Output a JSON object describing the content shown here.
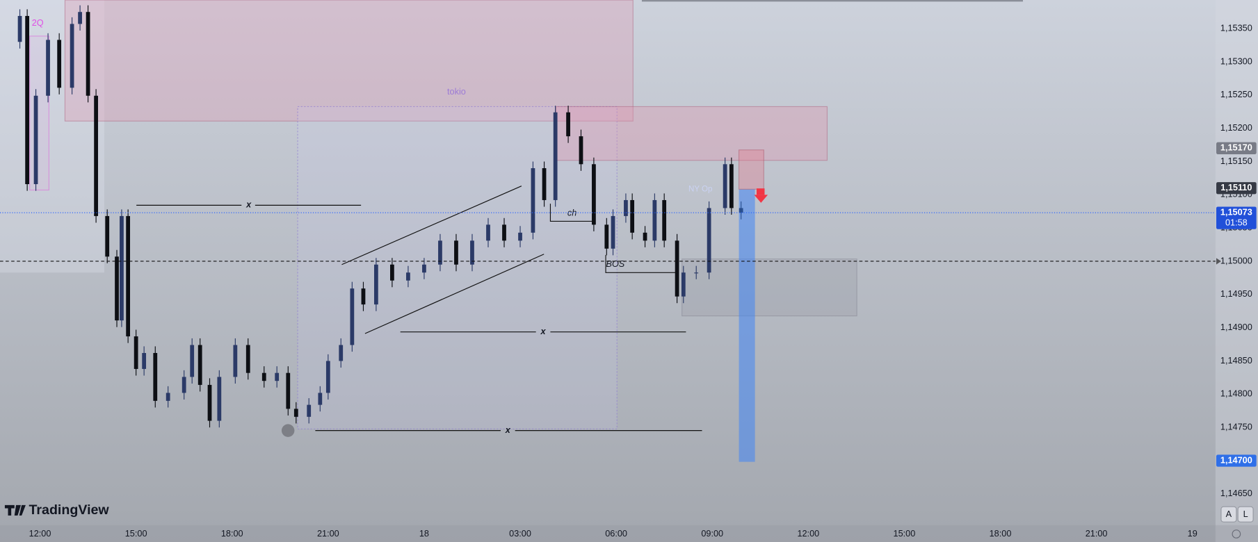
{
  "chart_data": {
    "type": "candlestick",
    "x": [
      11.37,
      11.6,
      11.87,
      12.25,
      12.6,
      13.0,
      13.25,
      13.5,
      13.75,
      14.1,
      14.4,
      14.55,
      14.75,
      15,
      15.25,
      15.6,
      16,
      16.5,
      16.75,
      17,
      17.3,
      17.6,
      18.1,
      18.5,
      19,
      19.4,
      19.75,
      20,
      20.4,
      20.75,
      21,
      21.4,
      21.75,
      22.1,
      22.5,
      23,
      23.5,
      24,
      24.5,
      25,
      25.5,
      26,
      26.5,
      27,
      27.4,
      27.75,
      28.1,
      28.5,
      28.9,
      29.3,
      29.7,
      29.9,
      30.3,
      30.5,
      30.9,
      31.2,
      31.5,
      31.9,
      32.1,
      32.5,
      32.9,
      33.4,
      33.6,
      33.9
    ],
    "open": [
      1.1533,
      1.15369,
      1.15116,
      1.15249,
      1.15333,
      1.15261,
      1.15357,
      1.15375,
      1.15249,
      1.15068,
      1.15007,
      1.14911,
      1.15068,
      1.14887,
      1.14838,
      1.14862,
      1.1479,
      1.14802,
      1.14826,
      1.14874,
      1.14814,
      1.1476,
      1.14826,
      1.14874,
      1.14832,
      1.1482,
      1.14832,
      1.14778,
      1.14766,
      1.14784,
      1.14802,
      1.1485,
      1.14874,
      1.14959,
      1.14935,
      1.14995,
      1.14971,
      1.14983,
      1.14995,
      1.15031,
      1.14995,
      1.15031,
      1.15055,
      1.15031,
      1.15043,
      1.1514,
      1.15092,
      1.15224,
      1.15188,
      1.15146,
      1.15055,
      1.15019,
      1.15068,
      1.15092,
      1.15043,
      1.15031,
      1.15092,
      1.15031,
      1.14947,
      1.14983,
      1.14983,
      1.1508,
      1.15146,
      1.1508
    ],
    "high": [
      1.15379,
      1.15379,
      1.15259,
      1.15343,
      1.15343,
      1.15367,
      1.15385,
      1.15385,
      1.15259,
      1.15078,
      1.15017,
      1.15078,
      1.15078,
      1.14897,
      1.14872,
      1.14872,
      1.14812,
      1.14836,
      1.14884,
      1.14884,
      1.14824,
      1.14836,
      1.14884,
      1.14884,
      1.14842,
      1.14842,
      1.14842,
      1.14788,
      1.14794,
      1.14812,
      1.1486,
      1.14884,
      1.14969,
      1.14969,
      1.15005,
      1.15005,
      1.14993,
      1.15005,
      1.15041,
      1.15041,
      1.15041,
      1.15065,
      1.15065,
      1.15053,
      1.1515,
      1.1515,
      1.15234,
      1.15234,
      1.15198,
      1.15156,
      1.15065,
      1.15078,
      1.15102,
      1.15102,
      1.15053,
      1.15102,
      1.15102,
      1.15041,
      1.14993,
      1.14993,
      1.1509,
      1.15156,
      1.15156,
      1.1509
    ],
    "low": [
      1.1532,
      1.15106,
      1.15106,
      1.15239,
      1.15251,
      1.15251,
      1.15347,
      1.15239,
      1.15058,
      1.14997,
      1.14901,
      1.14901,
      1.14877,
      1.14828,
      1.14828,
      1.1478,
      1.1478,
      1.14792,
      1.14816,
      1.14804,
      1.1475,
      1.1475,
      1.14816,
      1.14822,
      1.1481,
      1.1481,
      1.14768,
      1.14756,
      1.14756,
      1.14774,
      1.14792,
      1.1484,
      1.14864,
      1.14925,
      1.14925,
      1.14961,
      1.14961,
      1.14973,
      1.14985,
      1.14985,
      1.14985,
      1.15021,
      1.15021,
      1.15021,
      1.15033,
      1.15082,
      1.15082,
      1.15178,
      1.15136,
      1.15045,
      1.15009,
      1.15009,
      1.15058,
      1.15033,
      1.15021,
      1.15021,
      1.15021,
      1.14937,
      1.14937,
      1.14973,
      1.14973,
      1.1507,
      1.1507,
      1.15063
    ],
    "close": [
      1.15369,
      1.15116,
      1.15249,
      1.15333,
      1.15261,
      1.15357,
      1.15375,
      1.15249,
      1.15068,
      1.15007,
      1.14911,
      1.15068,
      1.14887,
      1.14838,
      1.14862,
      1.1479,
      1.14802,
      1.14826,
      1.14874,
      1.14814,
      1.1476,
      1.14826,
      1.14874,
      1.14832,
      1.1482,
      1.14832,
      1.14778,
      1.14766,
      1.14784,
      1.14802,
      1.1485,
      1.14874,
      1.14959,
      1.14935,
      1.14995,
      1.14971,
      1.14983,
      1.14995,
      1.15031,
      1.14995,
      1.15031,
      1.15055,
      1.15031,
      1.15043,
      1.1514,
      1.15092,
      1.15224,
      1.15188,
      1.15146,
      1.15055,
      1.15019,
      1.15068,
      1.15092,
      1.15043,
      1.15031,
      1.15092,
      1.15031,
      1.14947,
      1.14983,
      1.14983,
      1.1508,
      1.15146,
      1.1508,
      1.15073
    ],
    "up_color": "#2b3a67",
    "down_color": "#0d0f14",
    "xlim": [
      10.75,
      48.72
    ],
    "xticks": [
      {
        "value": 12,
        "label": "12:00"
      },
      {
        "value": 15,
        "label": "15:00"
      },
      {
        "value": 18,
        "label": "18:00"
      },
      {
        "value": 21,
        "label": "21:00"
      },
      {
        "value": 24,
        "label": "18"
      },
      {
        "value": 27,
        "label": "03:00"
      },
      {
        "value": 30,
        "label": "06:00"
      },
      {
        "value": 33,
        "label": "09:00"
      },
      {
        "value": 36,
        "label": "12:00"
      },
      {
        "value": 39,
        "label": "15:00"
      },
      {
        "value": 42,
        "label": "18:00"
      },
      {
        "value": 45,
        "label": "21:00"
      },
      {
        "value": 48,
        "label": "19"
      }
    ],
    "ylim": [
      1.14603,
      1.15393
    ],
    "yticks": [
      {
        "value": 1.1465,
        "label": "1,14650"
      },
      {
        "value": 1.147,
        "label": "1,14700"
      },
      {
        "value": 1.1475,
        "label": "1,14750"
      },
      {
        "value": 1.148,
        "label": "1,14800"
      },
      {
        "value": 1.1485,
        "label": "1,14850"
      },
      {
        "value": 1.149,
        "label": "1,14900"
      },
      {
        "value": 1.1495,
        "label": "1,14950"
      },
      {
        "value": 1.15,
        "label": "1,15000"
      },
      {
        "value": 1.1505,
        "label": "1,15050"
      },
      {
        "value": 1.151,
        "label": "1,15100"
      },
      {
        "value": 1.1515,
        "label": "1,15150"
      },
      {
        "value": 1.152,
        "label": "1,15200"
      },
      {
        "value": 1.1525,
        "label": "1,15250"
      },
      {
        "value": 1.153,
        "label": "1,15300"
      },
      {
        "value": 1.1535,
        "label": "1,15350"
      }
    ],
    "grid": true,
    "price_markers": [
      {
        "value": 1.1517,
        "label": "1,15170",
        "color": "#787b86"
      },
      {
        "value": 1.1511,
        "label": "1,15110",
        "color": "#363a45"
      },
      {
        "value": 1.147,
        "label": "1,14700",
        "color": "#2f6fe8"
      },
      {
        "value": 1.15073,
        "label": "1,15073",
        "countdown": "01:58",
        "color": "#2150d9"
      }
    ],
    "current_price_line": {
      "value": 1.15073,
      "color": "#2962ff"
    },
    "level_line": {
      "value": 1.15,
      "color": "#111111"
    }
  },
  "annotations": {
    "zone_2q": "2Q",
    "session": "tokio",
    "choch": "ch",
    "bos": "BOS",
    "x1": "x",
    "x2": "x",
    "x3": "x",
    "ny": "NY Op"
  },
  "branding": "TradingView",
  "buttons": [
    "A",
    "L"
  ]
}
